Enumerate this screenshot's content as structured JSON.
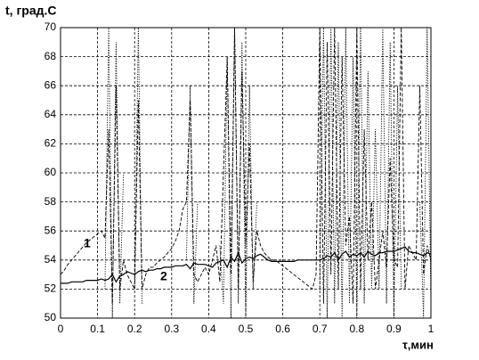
{
  "chart_data": {
    "type": "line",
    "title": "t, град.С",
    "x_label": "τ,мин",
    "annotations": [
      "1",
      "2"
    ],
    "x": [
      0,
      0.01,
      0.02,
      0.03,
      0.04,
      0.05,
      0.06,
      0.07,
      0.08,
      0.09,
      0.1,
      0.11,
      0.12,
      0.13,
      0.14,
      0.15,
      0.16,
      0.17,
      0.18,
      0.19,
      0.2,
      0.21,
      0.22,
      0.23,
      0.24,
      0.25,
      0.26,
      0.27,
      0.28,
      0.29,
      0.3,
      0.31,
      0.32,
      0.33,
      0.34,
      0.35,
      0.36,
      0.37,
      0.38,
      0.39,
      0.4,
      0.41,
      0.42,
      0.43,
      0.44,
      0.45,
      0.46,
      0.47,
      0.48,
      0.49,
      0.5,
      0.51,
      0.52,
      0.53,
      0.54,
      0.55,
      0.56,
      0.57,
      0.58,
      0.59,
      0.6,
      0.61,
      0.62,
      0.63,
      0.64,
      0.65,
      0.66,
      0.67,
      0.68,
      0.69,
      0.7,
      0.71,
      0.72,
      0.73,
      0.74,
      0.75,
      0.76,
      0.77,
      0.78,
      0.79,
      0.8,
      0.81,
      0.82,
      0.83,
      0.84,
      0.85,
      0.86,
      0.87,
      0.88,
      0.89,
      0.9,
      0.91,
      0.92,
      0.93,
      0.94,
      0.95,
      0.96,
      0.97,
      0.98,
      0.99,
      1
    ],
    "series": [
      {
        "name": "1",
        "color": "#000000",
        "line_style": "dashed",
        "values": [
          53.0,
          53.3,
          53.7,
          54.0,
          54.3,
          54.6,
          54.9,
          55.2,
          55.4,
          55.6,
          55.8,
          56.0,
          55.5,
          63.0,
          51.0,
          66.0,
          52.0,
          54.0,
          53.0,
          52.5,
          52.0,
          65.0,
          52.0,
          53.0,
          53.5,
          53.5,
          53.8,
          54.0,
          54.2,
          54.5,
          54.8,
          55.3,
          56.0,
          57.5,
          58.0,
          65.0,
          53.0,
          52.5,
          53.0,
          53.5,
          53.0,
          54.0,
          55.0,
          52.5,
          60.0,
          68.0,
          53.0,
          70.0,
          52.0,
          67.0,
          55.0,
          62.0,
          52.5,
          56.0,
          55.0,
          54.5,
          54.2,
          54.0,
          54.0,
          53.8,
          53.6,
          53.4,
          53.2,
          53.0,
          52.8,
          52.6,
          52.4,
          52.2,
          52.0,
          53.0,
          70.0,
          51.0,
          69.0,
          53.0,
          70.0,
          52.0,
          68.0,
          55.0,
          57.0,
          51.0,
          70.0,
          52.0,
          63.0,
          54.0,
          58.0,
          52.0,
          54.0,
          56.0,
          53.5,
          61.0,
          54.0,
          53.5,
          70.0,
          52.0,
          55.0,
          54.5,
          54.0,
          66.0,
          53.0,
          55.0,
          54.0
        ]
      },
      {
        "name": "2",
        "color": "#000000",
        "line_style": "solid",
        "values": [
          52.4,
          52.4,
          52.4,
          52.5,
          52.5,
          52.5,
          52.5,
          52.6,
          52.6,
          52.6,
          52.6,
          52.7,
          52.6,
          52.7,
          53.0,
          52.5,
          52.9,
          53.0,
          53.2,
          53.1,
          53.0,
          53.2,
          53.3,
          53.2,
          53.3,
          53.3,
          53.4,
          53.4,
          53.5,
          53.5,
          53.5,
          53.6,
          53.6,
          53.6,
          53.7,
          53.4,
          53.8,
          53.7,
          53.7,
          53.7,
          53.6,
          53.5,
          53.8,
          53.9,
          54.0,
          53.5,
          54.2,
          53.9,
          54.5,
          53.8,
          54.1,
          54.2,
          54.1,
          54.3,
          54.4,
          54.2,
          54.0,
          53.9,
          53.9,
          53.9,
          53.9,
          53.9,
          53.9,
          53.9,
          54.0,
          54.0,
          54.0,
          54.0,
          54.0,
          54.0,
          54.0,
          54.1,
          54.3,
          54.2,
          54.5,
          54.0,
          54.4,
          54.6,
          54.2,
          54.4,
          54.3,
          54.5,
          54.2,
          54.6,
          54.4,
          54.3,
          54.5,
          54.5,
          54.6,
          54.6,
          54.6,
          54.7,
          54.8,
          54.9,
          54.6,
          54.5,
          54.5,
          54.4,
          54.3,
          54.5,
          54.4
        ]
      },
      {
        "color": "#000000",
        "line_style": "dotted",
        "values": [
          null,
          null,
          null,
          null,
          null,
          null,
          null,
          null,
          null,
          null,
          null,
          null,
          52,
          70,
          50,
          69,
          51,
          60,
          null,
          null,
          52,
          70,
          51,
          null,
          null,
          null,
          null,
          null,
          null,
          null,
          null,
          null,
          null,
          null,
          54,
          66,
          51,
          58,
          null,
          null,
          null,
          null,
          null,
          55,
          51,
          68,
          50,
          70,
          51,
          69,
          50,
          66,
          52,
          58,
          null,
          null,
          null,
          null,
          null,
          null,
          null,
          null,
          null,
          null,
          null,
          null,
          null,
          null,
          null,
          null,
          52,
          70,
          50,
          70,
          51,
          69,
          50,
          70,
          51,
          68,
          50,
          70,
          51,
          67,
          52,
          63,
          52,
          70,
          51,
          69,
          50,
          66,
          52,
          null,
          null,
          null,
          null,
          58,
          50,
          70,
          51
        ]
      }
    ],
    "xlim": [
      0,
      1
    ],
    "xticks": [
      0,
      0.1,
      0.2,
      0.3,
      0.4,
      0.5,
      0.6,
      0.7,
      0.8,
      0.9,
      1
    ],
    "ylim": [
      50,
      70
    ],
    "yticks": [
      50,
      52,
      54,
      56,
      58,
      60,
      62,
      64,
      66,
      68,
      70
    ],
    "grid": true
  }
}
